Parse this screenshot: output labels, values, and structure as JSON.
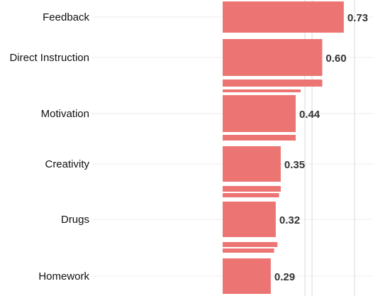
{
  "chart_data": {
    "type": "bar",
    "orientation": "horizontal",
    "categories": [
      "Feedback",
      "Direct Instruction",
      "Motivation",
      "Creativity",
      "Drugs",
      "Homework"
    ],
    "values": [
      0.73,
      0.6,
      0.44,
      0.35,
      0.32,
      0.29
    ],
    "value_labels": [
      "0.73",
      "0.60",
      "0.44",
      "0.35",
      "0.32",
      "0.29"
    ],
    "title": "",
    "xlabel": "",
    "ylabel": "",
    "grid": true,
    "legend": "none",
    "colors": {
      "bar": "#ec7573",
      "gridline": "#ececec",
      "label": "#111111",
      "value_label": "#333333"
    }
  }
}
